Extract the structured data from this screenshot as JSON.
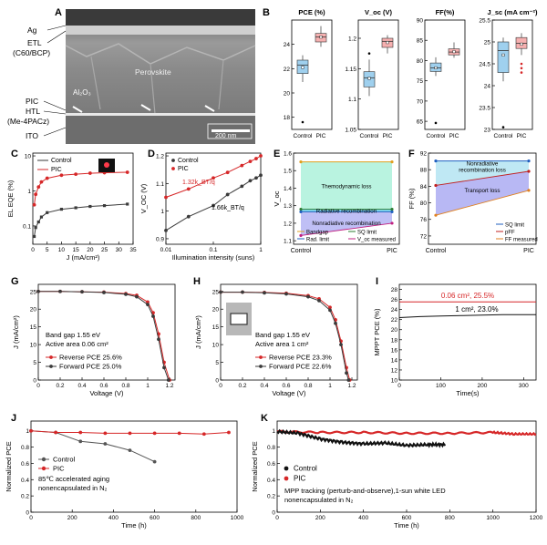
{
  "panel_letters": [
    "A",
    "B",
    "C",
    "D",
    "E",
    "F",
    "G",
    "H",
    "I",
    "J",
    "K"
  ],
  "sem": {
    "labels": [
      "Ag",
      "ETL",
      "(C60/BCP)",
      "PIC",
      "HTL",
      "(Me-4PACz)",
      "ITO"
    ],
    "perovskite": "Perovskite",
    "al2o3": "Al₂O₃",
    "scale_bar": "200 nm"
  },
  "colors": {
    "control": "#3a3a3a",
    "pic": "#d62728",
    "box_control": "#9fd0ee",
    "box_pic": "#f6b0b0"
  },
  "chart_data": [
    {
      "panel": "B",
      "type": "box",
      "title": "PCE (%)",
      "categories": [
        "Control",
        "PIC"
      ],
      "ylim": [
        17,
        26
      ],
      "yticks": [
        18,
        20,
        22,
        24
      ],
      "series": [
        {
          "name": "Control",
          "q1": 21.6,
          "median": 22.3,
          "q3": 22.7,
          "whisker_low": 20.9,
          "whisker_high": 23.1,
          "mean": 22.1,
          "outliers": [
            17.6
          ]
        },
        {
          "name": "PIC",
          "q1": 24.2,
          "median": 24.6,
          "q3": 24.9,
          "whisker_low": 23.8,
          "whisker_high": 25.5,
          "mean": 24.6,
          "outliers": []
        }
      ]
    },
    {
      "panel": "B",
      "type": "box",
      "title": "V_oc (V)",
      "categories": [
        "Control",
        "PIC"
      ],
      "ylim": [
        1.05,
        1.23
      ],
      "yticks": [
        1.05,
        1.1,
        1.15,
        1.2
      ],
      "series": [
        {
          "name": "Control",
          "q1": 1.12,
          "median": 1.135,
          "q3": 1.145,
          "whisker_low": 1.105,
          "whisker_high": 1.165,
          "mean": 1.134,
          "outliers": [
            1.175
          ]
        },
        {
          "name": "PIC",
          "q1": 1.185,
          "median": 1.195,
          "q3": 1.2,
          "whisker_low": 1.175,
          "whisker_high": 1.205,
          "mean": 1.193,
          "outliers": []
        }
      ]
    },
    {
      "panel": "B",
      "type": "box",
      "title": "FF(%)",
      "categories": [
        "Control",
        "PIC"
      ],
      "ylim": [
        63,
        90
      ],
      "yticks": [
        65,
        70,
        75,
        80,
        85,
        90
      ],
      "series": [
        {
          "name": "Control",
          "q1": 77.3,
          "median": 78.2,
          "q3": 79.4,
          "whisker_low": 76.2,
          "whisker_high": 80.8,
          "mean": 78.2,
          "outliers": [
            64.6
          ]
        },
        {
          "name": "PIC",
          "q1": 81.4,
          "median": 82.1,
          "q3": 82.9,
          "whisker_low": 80.7,
          "whisker_high": 84.5,
          "mean": 82.2,
          "outliers": []
        }
      ]
    },
    {
      "panel": "B",
      "type": "box",
      "title": "J_sc (mA cm⁻²)",
      "categories": [
        "Control",
        "PIC"
      ],
      "ylim": [
        23.0,
        25.5
      ],
      "yticks": [
        23.0,
        23.5,
        24.0,
        24.5,
        25.0,
        25.5
      ],
      "series": [
        {
          "name": "Control",
          "q1": 24.3,
          "median": 24.8,
          "q3": 25.0,
          "whisker_low": 24.1,
          "whisker_high": 25.1,
          "mean": 24.7,
          "outliers": [
            23.05
          ]
        },
        {
          "name": "PIC",
          "q1": 24.85,
          "median": 24.97,
          "q3": 25.1,
          "whisker_low": 24.7,
          "whisker_high": 25.2,
          "mean": 24.95,
          "outliers": [
            24.3,
            24.4,
            24.5
          ]
        }
      ]
    },
    {
      "panel": "C",
      "type": "line",
      "xlabel": "J (mA/cm²)",
      "ylabel": "EL EQE (%)",
      "yscale": "log",
      "xlim": [
        0,
        35
      ],
      "ylim": [
        0.03,
        12
      ],
      "xticks": [
        0,
        5,
        10,
        15,
        20,
        25,
        30,
        35
      ],
      "yticks": [
        0.1,
        1,
        10
      ],
      "series": [
        {
          "name": "Control",
          "x": [
            0.5,
            1,
            2,
            3,
            5,
            10,
            15,
            20,
            25,
            33
          ],
          "y": [
            0.05,
            0.09,
            0.13,
            0.18,
            0.24,
            0.3,
            0.33,
            0.36,
            0.38,
            0.42
          ]
        },
        {
          "name": "PIC",
          "x": [
            0.5,
            1,
            2,
            3,
            5,
            10,
            15,
            20,
            25,
            33
          ],
          "y": [
            0.4,
            0.8,
            1.3,
            1.8,
            2.3,
            2.8,
            3.0,
            3.2,
            3.3,
            3.4
          ]
        }
      ]
    },
    {
      "panel": "D",
      "type": "line",
      "xlabel": "Illumination intensity (suns)",
      "ylabel": "V_OC (V)",
      "xscale": "log",
      "xlim": [
        0.01,
        1
      ],
      "ylim": [
        0.88,
        1.21
      ],
      "xticks": [
        0.01,
        0.1,
        1
      ],
      "yticks": [
        0.9,
        1.0,
        1.1,
        1.2
      ],
      "annotations": [
        "1.32k_BT/q",
        "1.66k_BT/q"
      ],
      "series": [
        {
          "name": "Control",
          "x": [
            0.01,
            0.03,
            0.1,
            0.2,
            0.4,
            0.6,
            0.8,
            1.0
          ],
          "y": [
            0.93,
            0.98,
            1.02,
            1.06,
            1.09,
            1.11,
            1.12,
            1.13
          ]
        },
        {
          "name": "PIC",
          "x": [
            0.01,
            0.03,
            0.1,
            0.2,
            0.4,
            0.6,
            0.8,
            1.0
          ],
          "y": [
            1.05,
            1.08,
            1.12,
            1.14,
            1.165,
            1.18,
            1.19,
            1.2
          ]
        }
      ]
    },
    {
      "panel": "E",
      "type": "line",
      "ylabel": "V_oc",
      "categories": [
        "Control",
        "PIC"
      ],
      "ylim": [
        1.08,
        1.6
      ],
      "yticks": [
        1.1,
        1.2,
        1.3,
        1.4,
        1.5,
        1.6
      ],
      "regions": [
        "Themodynamic loss",
        "Radiative recombination",
        "Nonradiative recombination"
      ],
      "series": [
        {
          "name": "Bandgap",
          "values": [
            1.55,
            1.55
          ]
        },
        {
          "name": "SQ limit",
          "values": [
            1.28,
            1.28
          ]
        },
        {
          "name": "Rad. limit",
          "values": [
            1.265,
            1.265
          ]
        },
        {
          "name": "V_oc measured",
          "values": [
            1.13,
            1.2
          ]
        }
      ]
    },
    {
      "panel": "F",
      "type": "line",
      "ylabel": "FF (%)",
      "categories": [
        "Control",
        "PIC"
      ],
      "ylim": [
        70,
        92
      ],
      "yticks": [
        72,
        76,
        80,
        84,
        88,
        92
      ],
      "regions": [
        "Nonradiative recombination loss",
        "Transport loss"
      ],
      "series": [
        {
          "name": "SQ limit",
          "values": [
            90.1,
            90.1
          ]
        },
        {
          "name": "pFF",
          "values": [
            84.2,
            87.6
          ]
        },
        {
          "name": "FF measured",
          "values": [
            77.0,
            83.0
          ]
        }
      ]
    },
    {
      "panel": "G",
      "type": "line",
      "xlabel": "Voltage (V)",
      "ylabel": "J (mA/cm²)",
      "xlim": [
        0,
        1.25
      ],
      "ylim": [
        0,
        27
      ],
      "xticks": [
        0,
        0.2,
        0.4,
        0.6,
        0.8,
        1.0,
        1.2
      ],
      "yticks": [
        0,
        5,
        10,
        15,
        20,
        25
      ],
      "annotations": [
        "Band gap 1.55 eV",
        "Active area 0.06 cm²"
      ],
      "series": [
        {
          "name": "Reverse PCE 25.6%",
          "x": [
            0,
            0.2,
            0.4,
            0.6,
            0.8,
            0.9,
            1.0,
            1.05,
            1.1,
            1.15,
            1.2
          ],
          "y": [
            25.0,
            25.0,
            24.9,
            24.8,
            24.4,
            23.9,
            22.0,
            19.0,
            13.0,
            5.0,
            0
          ]
        },
        {
          "name": "Forward PCE 25.0%",
          "x": [
            0,
            0.2,
            0.4,
            0.6,
            0.8,
            0.9,
            1.0,
            1.05,
            1.1,
            1.15,
            1.19
          ],
          "y": [
            25.0,
            25.0,
            24.9,
            24.7,
            24.2,
            23.5,
            21.3,
            18.0,
            11.5,
            3.5,
            0
          ]
        }
      ]
    },
    {
      "panel": "H",
      "type": "line",
      "xlabel": "Voltage (V)",
      "ylabel": "J (mA/cm²)",
      "xlim": [
        0,
        1.25
      ],
      "ylim": [
        0,
        27
      ],
      "xticks": [
        0,
        0.2,
        0.4,
        0.6,
        0.8,
        1.0,
        1.2
      ],
      "yticks": [
        0,
        5,
        10,
        15,
        20,
        25
      ],
      "annotations": [
        "Band gap 1.55 eV",
        "Active area 1 cm²"
      ],
      "series": [
        {
          "name": "Reverse PCE 23.3%",
          "x": [
            0,
            0.2,
            0.4,
            0.6,
            0.8,
            0.9,
            1.0,
            1.05,
            1.1,
            1.15,
            1.18
          ],
          "y": [
            24.8,
            24.8,
            24.7,
            24.5,
            23.8,
            22.9,
            20.5,
            17.0,
            11.0,
            3.5,
            0
          ]
        },
        {
          "name": "Forward PCE 22.6%",
          "x": [
            0,
            0.2,
            0.4,
            0.6,
            0.8,
            0.9,
            1.0,
            1.05,
            1.1,
            1.15,
            1.17
          ],
          "y": [
            24.8,
            24.8,
            24.6,
            24.3,
            23.5,
            22.4,
            19.7,
            16.0,
            10.0,
            2.0,
            0
          ]
        }
      ]
    },
    {
      "panel": "I",
      "type": "line",
      "xlabel": "Time(s)",
      "ylabel": "MPPT PCE (%)",
      "xlim": [
        0,
        330
      ],
      "ylim": [
        10,
        29
      ],
      "xticks": [
        0,
        100,
        200,
        300
      ],
      "yticks": [
        10,
        12,
        14,
        16,
        18,
        20,
        22,
        24,
        26,
        28
      ],
      "series": [
        {
          "name": "0.06 cm², 25.5%",
          "x": [
            0,
            50,
            100,
            150,
            200,
            250,
            300,
            330
          ],
          "y": [
            25.5,
            25.5,
            25.5,
            25.5,
            25.5,
            25.5,
            25.5,
            25.5
          ]
        },
        {
          "name": "1 cm², 23.0%",
          "x": [
            0,
            50,
            100,
            150,
            200,
            250,
            300,
            330
          ],
          "y": [
            22.4,
            22.6,
            22.7,
            22.8,
            22.9,
            23.0,
            23.0,
            23.0
          ]
        }
      ]
    },
    {
      "panel": "J",
      "type": "line",
      "xlabel": "Time (h)",
      "ylabel": "Normalized PCE",
      "xlim": [
        0,
        1000
      ],
      "ylim": [
        0,
        1.12
      ],
      "xticks": [
        0,
        200,
        400,
        600,
        800,
        1000
      ],
      "yticks": [
        0.0,
        0.2,
        0.4,
        0.6,
        0.8,
        1.0
      ],
      "annotations": [
        "85℃ accelerated aging",
        "nonencapsulated in N₂"
      ],
      "series": [
        {
          "name": "Control",
          "x": [
            0,
            120,
            240,
            360,
            480,
            600
          ],
          "y": [
            1.0,
            0.98,
            0.87,
            0.84,
            0.76,
            0.62
          ]
        },
        {
          "name": "PIC",
          "x": [
            0,
            120,
            240,
            360,
            480,
            600,
            720,
            840,
            960
          ],
          "y": [
            1.0,
            0.98,
            0.98,
            0.97,
            0.97,
            0.97,
            0.97,
            0.96,
            0.98
          ]
        }
      ]
    },
    {
      "panel": "K",
      "type": "line",
      "xlabel": "Time (h)",
      "ylabel": "Normalized PCE",
      "xlim": [
        0,
        1200
      ],
      "ylim": [
        0,
        1.12
      ],
      "xticks": [
        0,
        200,
        400,
        600,
        800,
        1000,
        1200
      ],
      "yticks": [
        0.0,
        0.2,
        0.4,
        0.6,
        0.8,
        1.0
      ],
      "annotations": [
        "MPP tracking (perturb-and-observe),1-sun white LED",
        "nonencapsulated in N₂"
      ],
      "series": [
        {
          "name": "Control",
          "x": [
            0,
            100,
            200,
            300,
            400,
            500,
            600,
            700,
            780
          ],
          "y": [
            0.99,
            0.97,
            0.9,
            0.86,
            0.84,
            0.85,
            0.82,
            0.83,
            0.83
          ]
        },
        {
          "name": "PIC",
          "x": [
            0,
            200,
            400,
            600,
            800,
            1000,
            1100,
            1200
          ],
          "y": [
            0.99,
            0.98,
            0.98,
            0.97,
            0.97,
            0.98,
            0.96,
            0.96
          ]
        }
      ]
    }
  ]
}
